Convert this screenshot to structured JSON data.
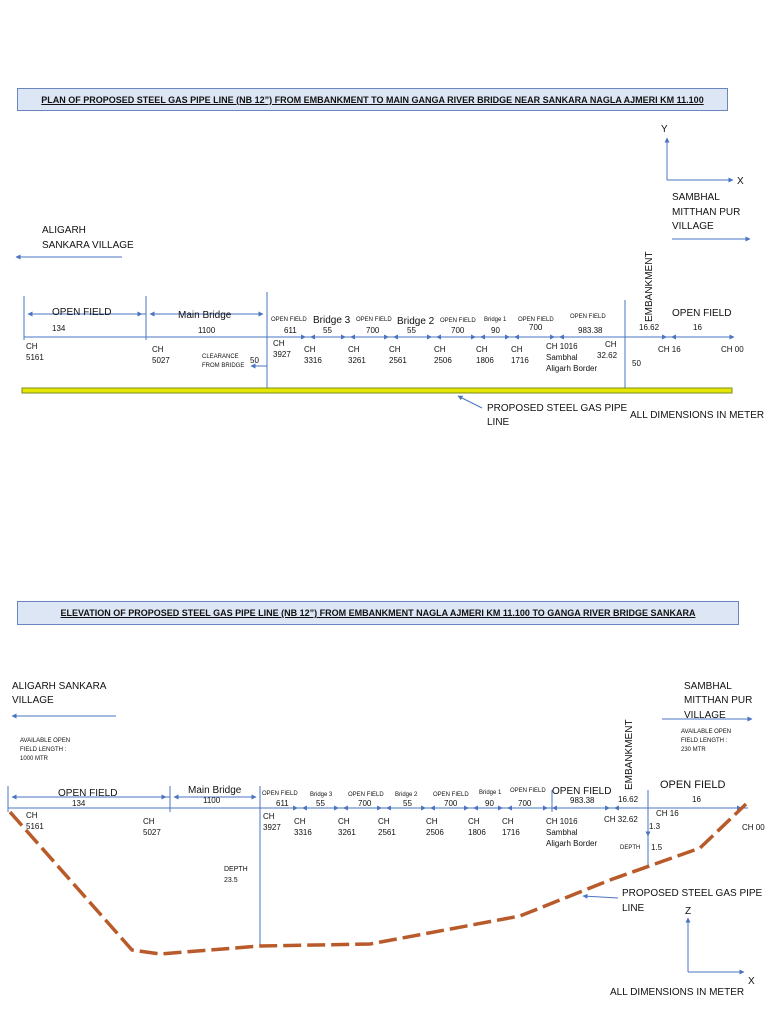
{
  "plan": {
    "title": "PLAN OF PROPOSED STEEL GAS PIPE LINE (NB 12”) FROM EMBANKMENT TO MAIN GANGA RIVER BRIDGE NEAR SANKARA NAGLA AJMERI KM 11.100",
    "axis_y": "Y",
    "axis_x": "X",
    "left_place": [
      "ALIGARH",
      "SANKARA VILLAGE"
    ],
    "right_place": [
      "SAMBHAL",
      "MITTHAN PUR",
      "VILLAGE"
    ],
    "embankment": "EMBANKMENT",
    "segments": [
      {
        "label": "OPEN FIELD",
        "value": "134"
      },
      {
        "label": "Main Bridge",
        "value": "1100"
      },
      {
        "label": "OPEN FIELD",
        "value": "611"
      },
      {
        "label": "Bridge 3",
        "value": "55"
      },
      {
        "label": "OPEN FIELD",
        "value": "700"
      },
      {
        "label": "Bridge 2",
        "value": "55"
      },
      {
        "label": "OPEN FIELD",
        "value": "700"
      },
      {
        "label": "Bridge 1",
        "value": "90"
      },
      {
        "label": "OPEN FIELD",
        "value": "700"
      },
      {
        "label": "OPEN FIELD",
        "value": "983.38"
      },
      {
        "label": "",
        "value": "16.62"
      },
      {
        "label": "OPEN FIELD",
        "value": "16"
      }
    ],
    "chainages": [
      [
        "CH",
        "5161"
      ],
      [
        "CH",
        "5027"
      ],
      [
        "CH",
        "3927"
      ],
      [
        "CH",
        "3316"
      ],
      [
        "CH",
        "3261"
      ],
      [
        "CH",
        "2561"
      ],
      [
        "CH",
        "2506"
      ],
      [
        "CH",
        "1806"
      ],
      [
        "CH",
        "1716"
      ],
      [
        "CH 1016",
        "Sambhal",
        "Aligarh Border"
      ],
      [
        "CH",
        "32.62"
      ],
      [
        "CH 16"
      ],
      [
        "CH 00"
      ]
    ],
    "clearance": [
      "CLEARANCE",
      "FROM BRIDGE"
    ],
    "clearance_value": "50",
    "embankment_offset": "50",
    "pipe_label": [
      "PROPOSED STEEL GAS PIPE",
      "LINE"
    ],
    "note": "ALL DIMENSIONS IN METER"
  },
  "elevation": {
    "title": "ELEVATION OF PROPOSED STEEL GAS PIPE LINE (NB 12”) FROM EMBANKMENT NAGLA AJMERI KM 11.100  TO  GANGA RIVER BRIDGE SANKARA",
    "left_place": [
      "ALIGARH SANKARA",
      "VILLAGE"
    ],
    "right_place": [
      "SAMBHAL",
      "MITTHAN PUR",
      "VILLAGE"
    ],
    "left_avail": [
      "AVAILABLE  OPEN",
      "FIELD LENGTH :",
      "1000 MTR"
    ],
    "right_avail": [
      "AVAILABLE  OPEN",
      "FIELD  LENGTH :",
      "230 MTR"
    ],
    "embankment": "EMBANKMENT",
    "segments": [
      {
        "label": "OPEN FIELD",
        "value": "134"
      },
      {
        "label": "Main Bridge",
        "value": "1100"
      },
      {
        "label": "OPEN FIELD",
        "value": "611"
      },
      {
        "label": "Bridge 3",
        "value": "55"
      },
      {
        "label": "OPEN FIELD",
        "value": "700"
      },
      {
        "label": "Bridge 2",
        "value": "55"
      },
      {
        "label": "OPEN FIELD",
        "value": "700"
      },
      {
        "label": "Bridge 1",
        "value": "90"
      },
      {
        "label": "OPEN FIELD",
        "value": "700"
      },
      {
        "label": "OPEN FIELD",
        "value": "983.38"
      },
      {
        "label": "",
        "value": "16.62"
      },
      {
        "label": "OPEN FIELD",
        "value": "16"
      }
    ],
    "chainages": [
      [
        "CH",
        "5161"
      ],
      [
        "CH",
        "5027"
      ],
      [
        "CH",
        "3927"
      ],
      [
        "CH",
        "3316"
      ],
      [
        "CH",
        "3261"
      ],
      [
        "CH",
        "2561"
      ],
      [
        "CH",
        "2506"
      ],
      [
        "CH",
        "1806"
      ],
      [
        "CH",
        "1716"
      ],
      [
        "CH 1016",
        "Sambhal",
        "Aligarh Border"
      ],
      [
        "CH 32.62"
      ],
      [
        "CH 16"
      ],
      [
        "CH 00"
      ]
    ],
    "depth_main": [
      "DEPTH",
      "23.5"
    ],
    "depth_small": "DEPTH",
    "depth_vals": [
      "1.3",
      "1.5"
    ],
    "pipe_label": [
      "PROPOSED STEEL GAS PIPE",
      "LINE"
    ],
    "axis_z": "Z",
    "axis_x": "X",
    "note": "ALL DIMENSIONS IN METER"
  },
  "colors": {
    "line_blue": "#4a74c0",
    "pipe_yellow": "#e6e600",
    "pipe_green": "#7a8c1e",
    "pipe_dash": "#b85a2a",
    "title_fill": "#dde6f4"
  }
}
